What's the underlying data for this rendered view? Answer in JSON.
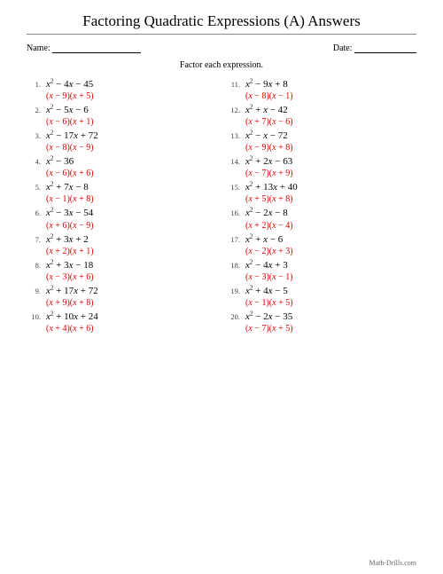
{
  "title": "Factoring Quadratic Expressions (A) Answers",
  "name_label": "Name:",
  "date_label": "Date:",
  "instruction": "Factor each expression.",
  "footer": "Math-Drills.com",
  "colors": {
    "answer": "#e00000",
    "text": "#000000",
    "rule": "#888888"
  },
  "fontsizes": {
    "title": 17,
    "label": 10,
    "expr": 11,
    "answer": 10,
    "num": 8.5,
    "footer": 8
  },
  "problems": [
    {
      "n": "1.",
      "b": -4,
      "c": -45,
      "f1": "(x − 9)",
      "f2": "(x + 5)"
    },
    {
      "n": "2.",
      "b": -5,
      "c": -6,
      "f1": "(x − 6)",
      "f2": "(x + 1)"
    },
    {
      "n": "3.",
      "b": -17,
      "c": 72,
      "f1": "(x − 8)",
      "f2": "(x − 9)"
    },
    {
      "n": "4.",
      "b": 0,
      "c": -36,
      "f1": "(x − 6)",
      "f2": "(x + 6)"
    },
    {
      "n": "5.",
      "b": 7,
      "c": -8,
      "f1": "(x − 1)",
      "f2": "(x + 8)"
    },
    {
      "n": "6.",
      "b": -3,
      "c": -54,
      "f1": "(x + 6)",
      "f2": "(x − 9)"
    },
    {
      "n": "7.",
      "b": 3,
      "c": 2,
      "f1": "(x + 2)",
      "f2": "(x + 1)"
    },
    {
      "n": "8.",
      "b": 3,
      "c": -18,
      "f1": "(x − 3)",
      "f2": "(x + 6)"
    },
    {
      "n": "9.",
      "b": 17,
      "c": 72,
      "f1": "(x + 9)",
      "f2": "(x + 8)"
    },
    {
      "n": "10.",
      "b": 10,
      "c": 24,
      "f1": "(x + 4)",
      "f2": "(x + 6)"
    },
    {
      "n": "11.",
      "b": -9,
      "c": 8,
      "f1": "(x − 8)",
      "f2": "(x − 1)"
    },
    {
      "n": "12.",
      "b": 1,
      "c": -42,
      "f1": "(x + 7)",
      "f2": "(x − 6)"
    },
    {
      "n": "13.",
      "b": -1,
      "c": -72,
      "f1": "(x − 9)",
      "f2": "(x + 8)"
    },
    {
      "n": "14.",
      "b": 2,
      "c": -63,
      "f1": "(x − 7)",
      "f2": "(x + 9)"
    },
    {
      "n": "15.",
      "b": 13,
      "c": 40,
      "f1": "(x + 5)",
      "f2": "(x + 8)"
    },
    {
      "n": "16.",
      "b": -2,
      "c": -8,
      "f1": "(x + 2)",
      "f2": "(x − 4)"
    },
    {
      "n": "17.",
      "b": 1,
      "c": -6,
      "f1": "(x − 2)",
      "f2": "(x + 3)"
    },
    {
      "n": "18.",
      "b": -4,
      "c": 3,
      "f1": "(x − 3)",
      "f2": "(x − 1)"
    },
    {
      "n": "19.",
      "b": 4,
      "c": -5,
      "f1": "(x − 1)",
      "f2": "(x + 5)"
    },
    {
      "n": "20.",
      "b": -2,
      "c": -35,
      "f1": "(x − 7)",
      "f2": "(x + 5)"
    }
  ]
}
